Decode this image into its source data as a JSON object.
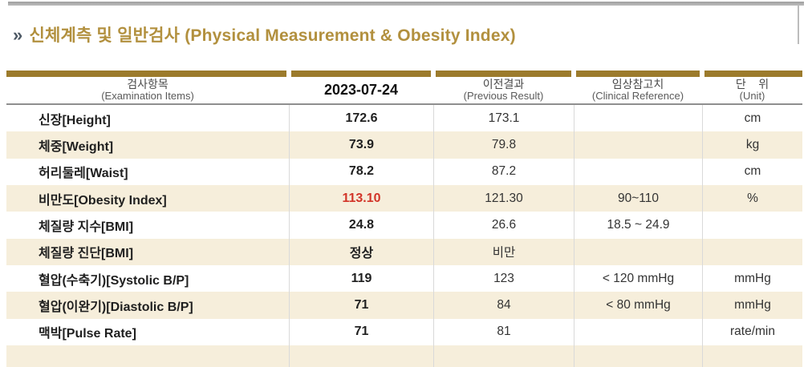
{
  "title": {
    "chevron": "»",
    "text": "신체계측 및 일반검사 (Physical Measurement & Obesity Index)"
  },
  "table": {
    "headers": [
      {
        "line1": "검사항목",
        "line2": "(Examination Items)"
      },
      {
        "line1": "2023-07-24",
        "line2": ""
      },
      {
        "line1": "이전결과",
        "line2": "(Previous Result)"
      },
      {
        "line1": "임상참고치",
        "line2": "(Clinical Reference)"
      },
      {
        "line1": "단    위",
        "line2": "(Unit)"
      }
    ],
    "rows": [
      {
        "item": "신장[Height]",
        "current": "172.6",
        "previous": "173.1",
        "reference": "",
        "unit": "cm",
        "shaded": false,
        "alert": false
      },
      {
        "item": "체중[Weight]",
        "current": "73.9",
        "previous": "79.8",
        "reference": "",
        "unit": "kg",
        "shaded": true,
        "alert": false
      },
      {
        "item": "허리둘레[Waist]",
        "current": "78.2",
        "previous": "87.2",
        "reference": "",
        "unit": "cm",
        "shaded": false,
        "alert": false
      },
      {
        "item": "비만도[Obesity Index]",
        "current": "113.10",
        "previous": "121.30",
        "reference": "90~110",
        "unit": "%",
        "shaded": true,
        "alert": true
      },
      {
        "item": "체질량 지수[BMI]",
        "current": "24.8",
        "previous": "26.6",
        "reference": "18.5 ~ 24.9",
        "unit": "",
        "shaded": false,
        "alert": false
      },
      {
        "item": "체질량 진단[BMI]",
        "current": "정상",
        "previous": "비만",
        "reference": "",
        "unit": "",
        "shaded": true,
        "alert": false
      },
      {
        "item": "혈압(수축기)[Systolic B/P]",
        "current": "119",
        "previous": "123",
        "reference": "< 120 mmHg",
        "unit": "mmHg",
        "shaded": false,
        "alert": false
      },
      {
        "item": "혈압(이완기)[Diastolic B/P]",
        "current": "71",
        "previous": "84",
        "reference": "< 80 mmHg",
        "unit": "mmHg",
        "shaded": true,
        "alert": false
      },
      {
        "item": "맥박[Pulse Rate]",
        "current": "71",
        "previous": "81",
        "reference": "",
        "unit": "rate/min",
        "shaded": false,
        "alert": false
      },
      {
        "item": "",
        "current": "",
        "previous": "",
        "reference": "",
        "unit": "",
        "shaded": true,
        "alert": false
      }
    ]
  },
  "colors": {
    "accent_gold": "#9C7B2C",
    "title_gold": "#B2903E",
    "row_shaded": "#F6EEDB",
    "alert_red": "#D23428",
    "header_text": "#4A4A4A"
  }
}
